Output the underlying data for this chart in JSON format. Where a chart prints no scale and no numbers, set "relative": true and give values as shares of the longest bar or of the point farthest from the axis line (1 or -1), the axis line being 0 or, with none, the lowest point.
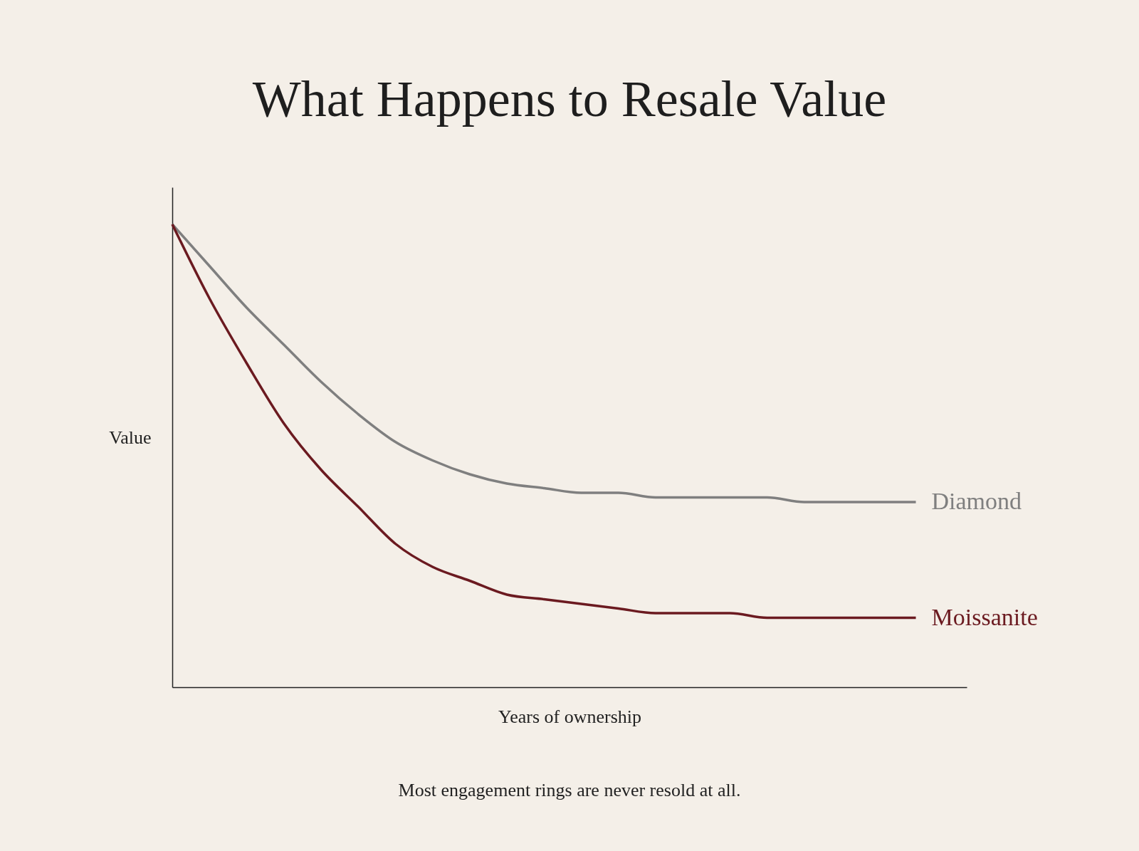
{
  "chart_data": {
    "type": "line",
    "title": "What Happens to Resale Value",
    "xlabel": "Years of ownership",
    "ylabel": "Value",
    "annotations": [
      "Most engagement rings are never resold at all."
    ],
    "relative": true,
    "legend": false,
    "marker": "none",
    "line_style": "solid",
    "categories": [
      null,
      null,
      null,
      null,
      null,
      null,
      null,
      null,
      null,
      null,
      null,
      null,
      null,
      null,
      null,
      null,
      null,
      null,
      null,
      null,
      null
    ],
    "series": [
      {
        "name": "Diamond",
        "color": "#7f7f7f",
        "values": [
          1,
          0.91,
          0.82,
          0.74,
          0.66,
          0.59,
          0.53,
          0.49,
          0.46,
          0.44,
          0.43,
          0.42,
          0.42,
          0.41,
          0.41,
          0.41,
          0.41,
          0.4,
          0.4,
          0.4,
          0.4
        ]
      },
      {
        "name": "Moissanite",
        "color": "#6b1a20",
        "values": [
          1,
          0.84,
          0.7,
          0.57,
          0.47,
          0.39,
          0.31,
          0.26,
          0.23,
          0.2,
          0.19,
          0.18,
          0.17,
          0.16,
          0.16,
          0.16,
          0.15,
          0.15,
          0.15,
          0.15,
          0.15
        ]
      }
    ]
  }
}
